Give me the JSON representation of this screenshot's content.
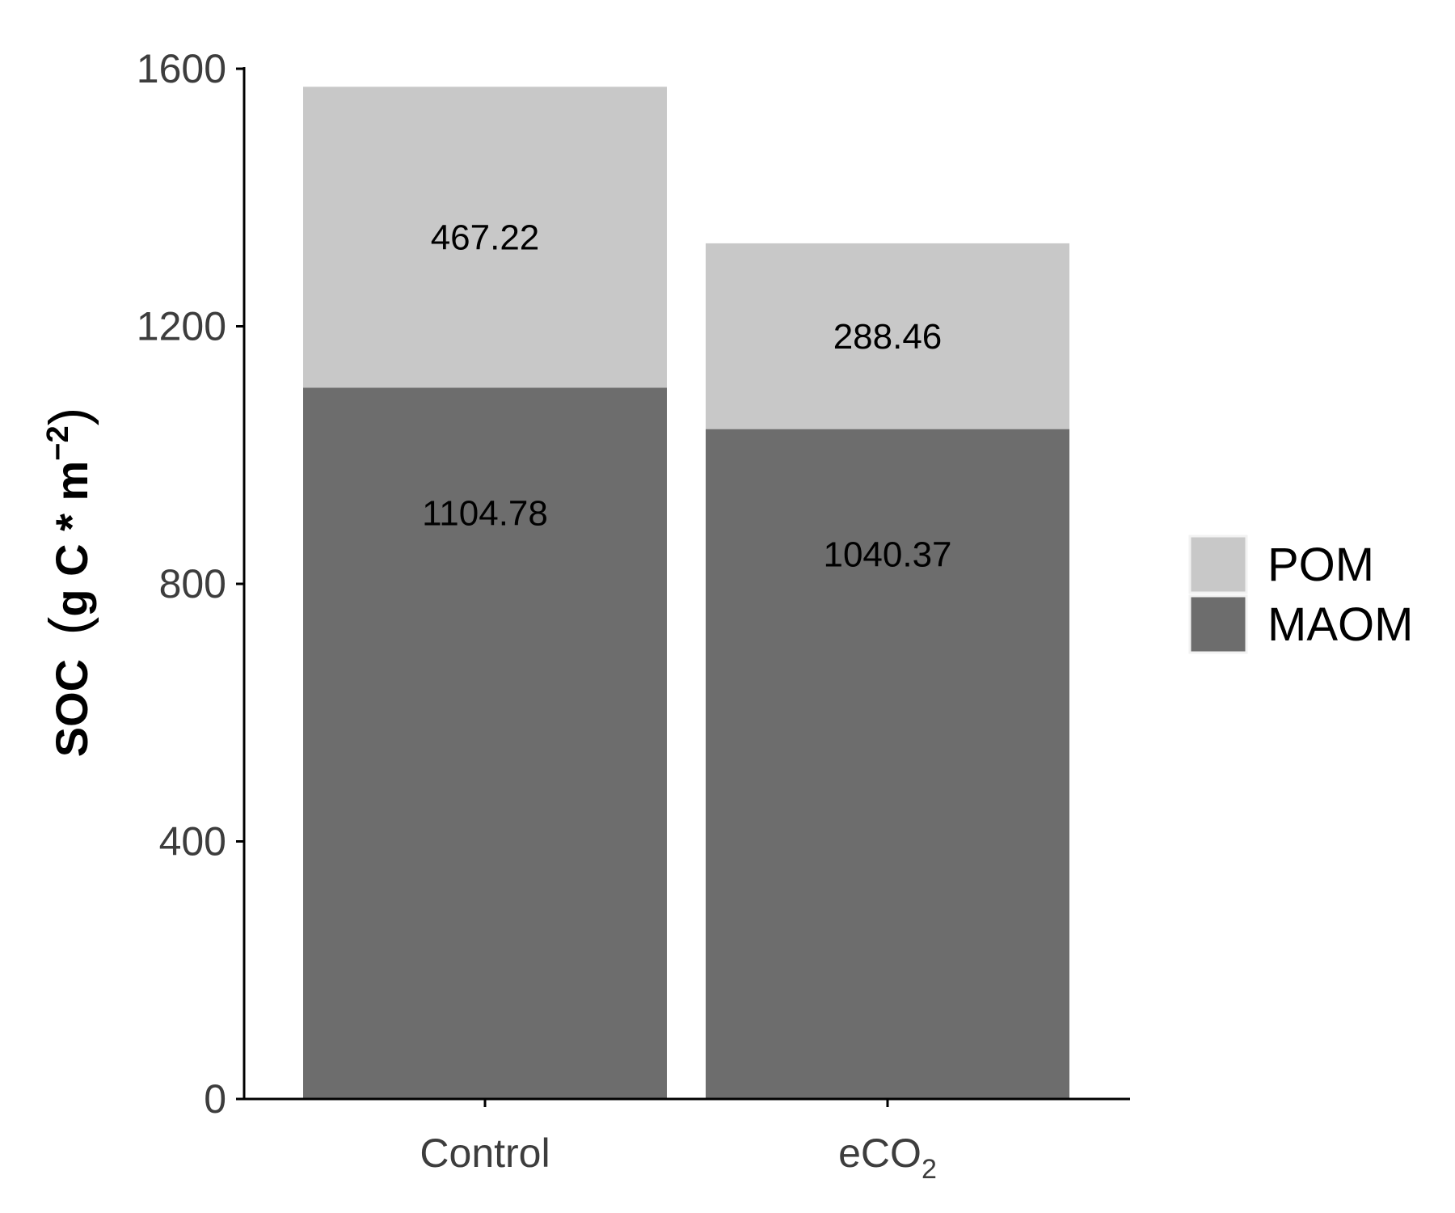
{
  "chart_data": {
    "type": "bar",
    "stacked": true,
    "categories": [
      {
        "label": "Control",
        "subscript": ""
      },
      {
        "label": "eCO",
        "subscript": "2"
      }
    ],
    "series": [
      {
        "name": "MAOM",
        "color": "#6d6d6d",
        "values": [
          1104.78,
          1040.37
        ],
        "labels": [
          "1104.78",
          "1040.37"
        ]
      },
      {
        "name": "POM",
        "color": "#c8c8c8",
        "values": [
          467.22,
          288.46
        ],
        "labels": [
          "467.22",
          "288.46"
        ]
      }
    ],
    "ylabel": {
      "main": "SOC",
      "unit": "g C * m",
      "exponent": "−2"
    },
    "ylim": [
      0,
      1600
    ],
    "yticks": [
      0,
      400,
      800,
      1200,
      1600
    ],
    "legend": {
      "position": "right",
      "order": [
        "POM",
        "MAOM"
      ]
    },
    "grid": false
  }
}
